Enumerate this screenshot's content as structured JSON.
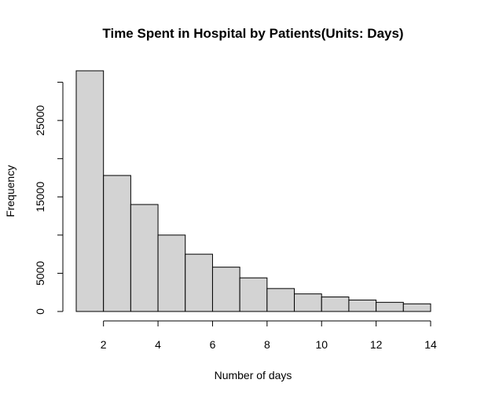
{
  "chart_data": {
    "type": "bar",
    "title": "Time Spent in Hospital by Patients(Units: Days)",
    "xlabel": "Number of days",
    "ylabel": "Frequency",
    "bins": [
      {
        "from": 1,
        "to": 2,
        "count": 31500
      },
      {
        "from": 2,
        "to": 3,
        "count": 17800
      },
      {
        "from": 3,
        "to": 4,
        "count": 14000
      },
      {
        "from": 4,
        "to": 5,
        "count": 10000
      },
      {
        "from": 5,
        "to": 6,
        "count": 7500
      },
      {
        "from": 6,
        "to": 7,
        "count": 5800
      },
      {
        "from": 7,
        "to": 8,
        "count": 4400
      },
      {
        "from": 8,
        "to": 9,
        "count": 3000
      },
      {
        "from": 9,
        "to": 10,
        "count": 2300
      },
      {
        "from": 10,
        "to": 11,
        "count": 1900
      },
      {
        "from": 11,
        "to": 12,
        "count": 1500
      },
      {
        "from": 12,
        "to": 13,
        "count": 1200
      },
      {
        "from": 13,
        "to": 14,
        "count": 1000
      }
    ],
    "xlim": [
      1,
      14
    ],
    "ylim": [
      0,
      31500
    ],
    "x_ticks": [
      2,
      4,
      6,
      8,
      10,
      12,
      14
    ],
    "y_ticks": [
      0,
      5000,
      15000,
      25000
    ],
    "y_tick_marks": [
      0,
      5000,
      10000,
      15000,
      20000,
      25000,
      30000
    ],
    "grid": false,
    "bar_color": "#d3d3d3",
    "border_color": "#000000"
  }
}
